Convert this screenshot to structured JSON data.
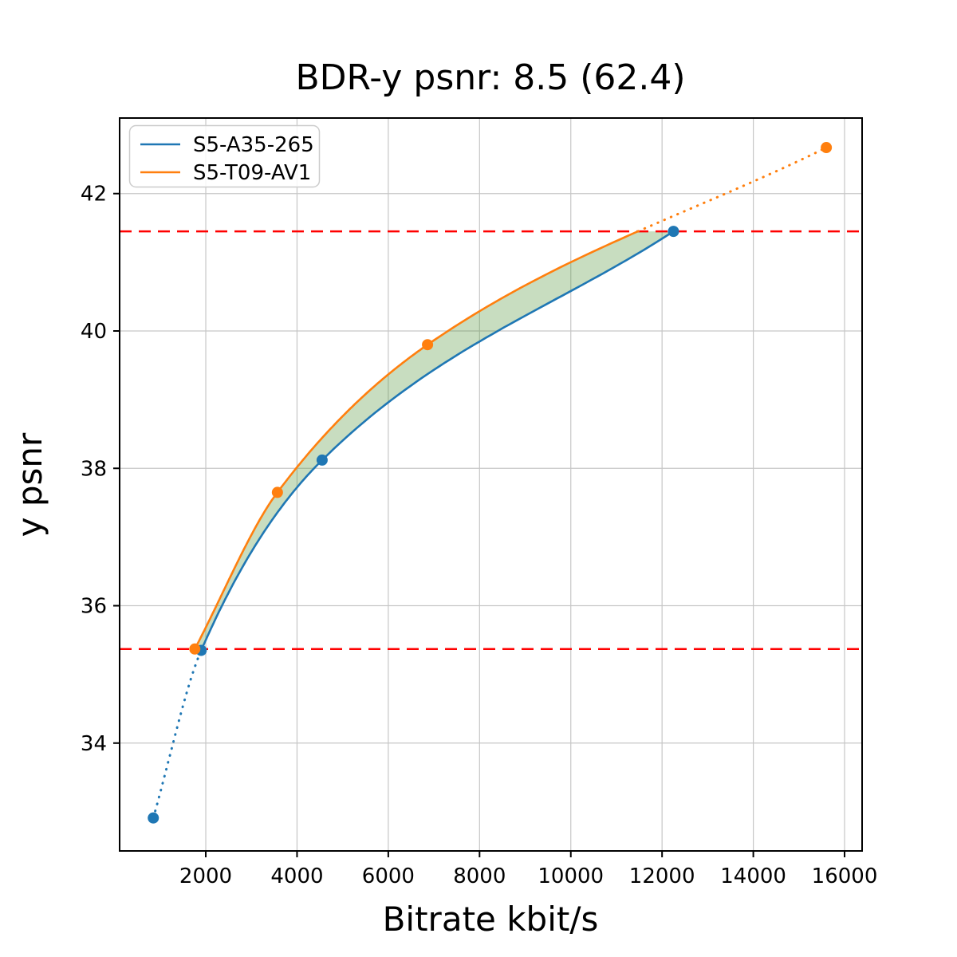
{
  "chart_data": {
    "type": "line",
    "title": "BDR-y psnr: 8.5 (62.4)",
    "xlabel": "Bitrate kbit/s",
    "ylabel": "y psnr",
    "xlim": [
      112,
      16384
    ],
    "ylim": [
      32.43,
      43.1
    ],
    "xticks": [
      2000,
      4000,
      6000,
      8000,
      10000,
      12000,
      14000,
      16000
    ],
    "yticks": [
      34,
      36,
      38,
      40,
      42
    ],
    "grid": true,
    "grid_color": "#c6c6c6",
    "background_color": "#ffffff",
    "spine_color": "#000000",
    "legend_position": "upper-left",
    "series": [
      {
        "name": "S5-A35-265",
        "color": "#1f77b4",
        "marker": "circle",
        "points": [
          [
            850,
            32.91
          ],
          [
            1900,
            35.35
          ],
          [
            4550,
            38.12
          ],
          [
            12250,
            41.45
          ]
        ],
        "solid_start_index": 1,
        "dotted_above_y": null
      },
      {
        "name": "S5-T09-AV1",
        "color": "#ff7f0e",
        "marker": "circle",
        "points": [
          [
            1760,
            35.37
          ],
          [
            3570,
            37.65
          ],
          [
            6860,
            39.8
          ],
          [
            15600,
            42.67
          ]
        ],
        "solid_start_index": 0,
        "dotted_above_y": 41.45
      }
    ],
    "hlines": [
      {
        "y": 35.37
      },
      {
        "y": 41.45
      }
    ],
    "hline_color": "#ff0000",
    "fill_between": {
      "lower_series": 0,
      "upper_series": 1,
      "color": "rgba(85, 150, 60, 0.32)"
    }
  }
}
